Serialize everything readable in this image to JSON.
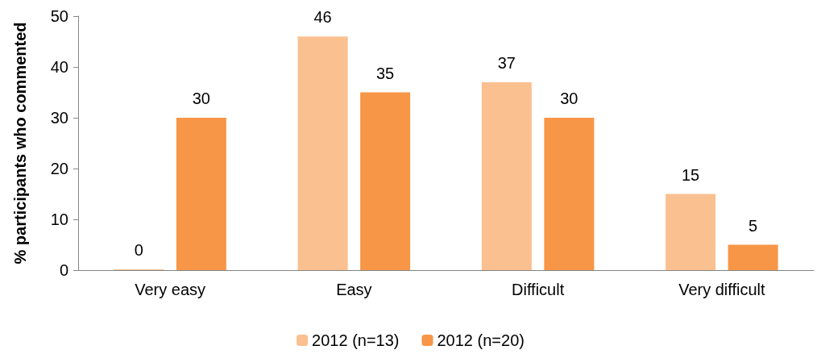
{
  "chart_data": {
    "type": "bar",
    "ylabel": "% participants who commented",
    "categories": [
      "Very easy",
      "Easy",
      "Difficult",
      "Very difficult"
    ],
    "series": [
      {
        "name": "2012 (n=13)",
        "color": "#fac090",
        "values": [
          0,
          46,
          37,
          15
        ]
      },
      {
        "name": "2012 (n=20)",
        "color": "#f79646",
        "values": [
          30,
          35,
          30,
          5
        ]
      }
    ],
    "ylim": [
      0,
      50
    ],
    "yticks": [
      0,
      10,
      20,
      30,
      40,
      50
    ],
    "data_labels": true,
    "grid": false,
    "legend": "bottom"
  }
}
